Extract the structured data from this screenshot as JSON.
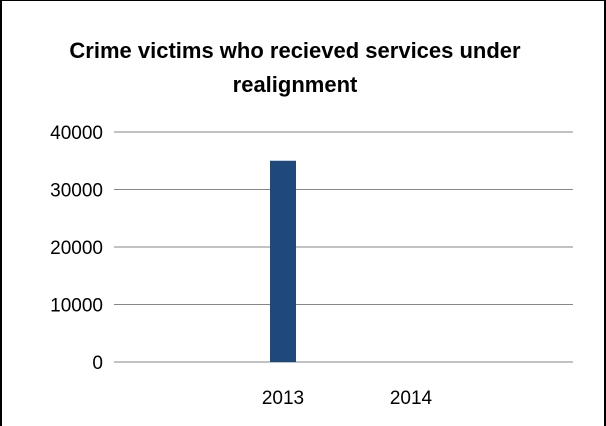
{
  "chart_data": {
    "type": "bar",
    "title": "Crime victims who recieved services under realignment",
    "categories": [
      "2013",
      "2014"
    ],
    "values": [
      35000,
      0
    ],
    "ylim": [
      0,
      40000
    ],
    "yticks": [
      "0",
      "10000",
      "20000",
      "30000",
      "40000"
    ],
    "xlabel": "",
    "ylabel": "",
    "grid": true,
    "legend": "none",
    "bar_color": "#1F497D",
    "gridline_color": "#868686"
  }
}
